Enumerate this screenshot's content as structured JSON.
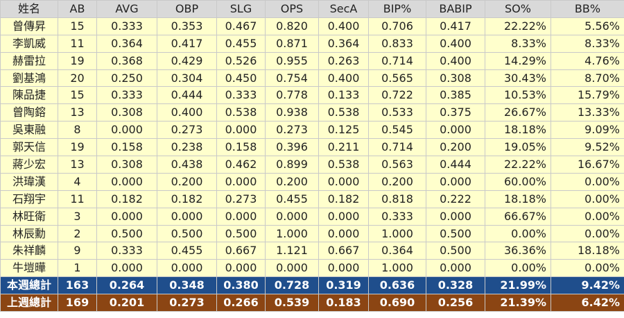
{
  "table": {
    "headers": [
      "姓名",
      "AB",
      "AVG",
      "OBP",
      "SLG",
      "OPS",
      "SecA",
      "BIP%",
      "BABIP",
      "SO%",
      "BB%"
    ],
    "rows": [
      [
        "曾傳昇",
        "15",
        "0.333",
        "0.353",
        "0.467",
        "0.820",
        "0.400",
        "0.706",
        "0.417",
        "22.22%",
        "5.56%"
      ],
      [
        "李凱威",
        "11",
        "0.364",
        "0.417",
        "0.455",
        "0.871",
        "0.364",
        "0.833",
        "0.400",
        "8.33%",
        "8.33%"
      ],
      [
        "赫雷拉",
        "19",
        "0.368",
        "0.429",
        "0.526",
        "0.955",
        "0.263",
        "0.714",
        "0.400",
        "14.29%",
        "4.76%"
      ],
      [
        "劉基鴻",
        "20",
        "0.250",
        "0.304",
        "0.450",
        "0.754",
        "0.400",
        "0.565",
        "0.308",
        "30.43%",
        "8.70%"
      ],
      [
        "陳品捷",
        "15",
        "0.333",
        "0.444",
        "0.333",
        "0.778",
        "0.133",
        "0.722",
        "0.385",
        "10.53%",
        "15.79%"
      ],
      [
        "曾陶鎔",
        "13",
        "0.308",
        "0.400",
        "0.538",
        "0.938",
        "0.538",
        "0.533",
        "0.375",
        "26.67%",
        "13.33%"
      ],
      [
        "吳東融",
        "8",
        "0.000",
        "0.273",
        "0.000",
        "0.273",
        "0.125",
        "0.545",
        "0.000",
        "18.18%",
        "9.09%"
      ],
      [
        "郭天信",
        "19",
        "0.158",
        "0.238",
        "0.158",
        "0.396",
        "0.211",
        "0.714",
        "0.200",
        "19.05%",
        "9.52%"
      ],
      [
        "蔣少宏",
        "13",
        "0.308",
        "0.438",
        "0.462",
        "0.899",
        "0.538",
        "0.563",
        "0.444",
        "22.22%",
        "16.67%"
      ],
      [
        "洪瑋漢",
        "4",
        "0.000",
        "0.200",
        "0.000",
        "0.200",
        "0.000",
        "0.200",
        "0.000",
        "60.00%",
        "0.00%"
      ],
      [
        "石翔宇",
        "11",
        "0.182",
        "0.182",
        "0.273",
        "0.455",
        "0.182",
        "0.818",
        "0.222",
        "18.18%",
        "0.00%"
      ],
      [
        "林旺衛",
        "3",
        "0.000",
        "0.000",
        "0.000",
        "0.000",
        "0.000",
        "0.333",
        "0.000",
        "66.67%",
        "0.00%"
      ],
      [
        "林辰勳",
        "2",
        "0.500",
        "0.500",
        "0.500",
        "1.000",
        "0.000",
        "1.000",
        "0.500",
        "0.00%",
        "0.00%"
      ],
      [
        "朱祥麟",
        "9",
        "0.333",
        "0.455",
        "0.667",
        "1.121",
        "0.667",
        "0.364",
        "0.500",
        "36.36%",
        "18.18%"
      ],
      [
        "牛塏曄",
        "1",
        "0.000",
        "0.000",
        "0.000",
        "0.000",
        "0.000",
        "1.000",
        "0.000",
        "0.00%",
        "0.00%"
      ]
    ],
    "this_week_total": [
      "本週總計",
      "163",
      "0.264",
      "0.348",
      "0.380",
      "0.728",
      "0.319",
      "0.636",
      "0.328",
      "21.99%",
      "9.42%"
    ],
    "last_week_total": [
      "上週總計",
      "169",
      "0.201",
      "0.273",
      "0.266",
      "0.539",
      "0.183",
      "0.690",
      "0.256",
      "21.39%",
      "6.42%"
    ]
  },
  "colors": {
    "header_bg": "#d9d9d9",
    "row_bg": "#ffffcc",
    "this_week_bg": "#1f4e8c",
    "last_week_bg": "#8b4513",
    "total_text": "#ffffff"
  }
}
